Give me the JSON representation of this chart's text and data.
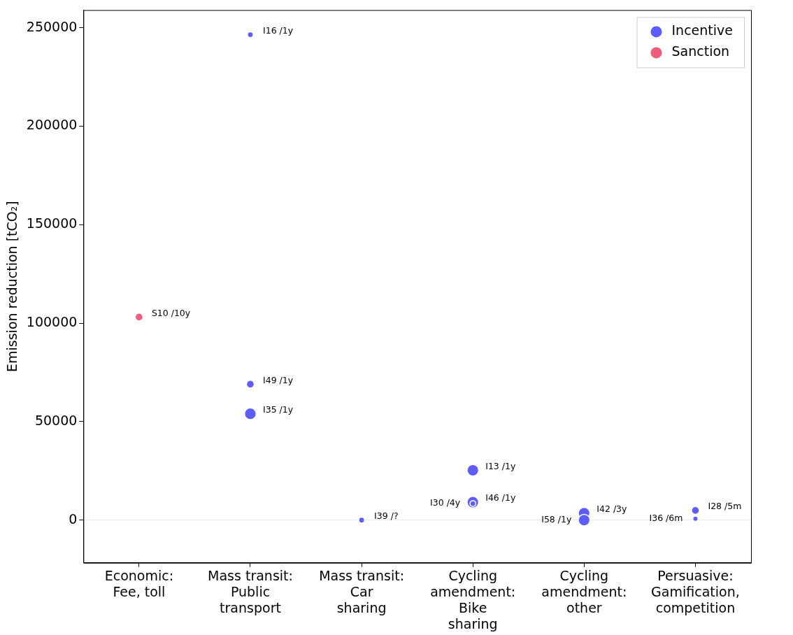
{
  "chart_data": {
    "type": "bubble",
    "ylabel": "Emission reduction [tCO₂]",
    "categories": [
      "Economic:\nFee, toll",
      "Mass transit:\nPublic\ntransport",
      "Mass transit:\nCar\nsharing",
      "Cycling\namendment:\nBike\nsharing",
      "Cycling\namendment:\nother",
      "Persuasive:\nGamification,\ncompetition"
    ],
    "ylim": [
      -21700,
      259000
    ],
    "yticks": [
      0,
      50000,
      100000,
      150000,
      200000,
      250000
    ],
    "series": [
      {
        "name": "Incentive",
        "color": "#5c5cff",
        "x": [
          "Mass transit:\nPublic\ntransport",
          "Mass transit:\nPublic\ntransport",
          "Mass transit:\nPublic\ntransport",
          "Mass transit:\nCar\nsharing",
          "Cycling\namendment:\nBike\nsharing",
          "Cycling\namendment:\nBike\nsharing",
          "Cycling\namendment:\nBike\nsharing",
          "Cycling\namendment:\nother",
          "Cycling\namendment:\nother",
          "Persuasive:\nGamification,\ncompetition",
          "Persuasive:\nGamification,\ncompetition"
        ],
        "values": [
          246500,
          69000,
          54000,
          0,
          25300,
          9100,
          8400,
          3500,
          0,
          4900,
          700
        ],
        "sizes": [
          0.25,
          0.45,
          1,
          0.25,
          1,
          1,
          0.25,
          1,
          1,
          0.45,
          0.2
        ]
      },
      {
        "name": "Sanction",
        "color": "#f25c7c",
        "x": [
          "Economic:\nFee, toll"
        ],
        "values": [
          103100
        ],
        "sizes": [
          0.45
        ]
      }
    ],
    "annotations": [
      {
        "text": "I16 /1y",
        "x": "Mass transit:\nPublic\ntransport",
        "y": 246500
      },
      {
        "text": "I49 /1y",
        "x": "Mass transit:\nPublic\ntransport",
        "y": 69000
      },
      {
        "text": "I35 /1y",
        "x": "Mass transit:\nPublic\ntransport",
        "y": 54000
      },
      {
        "text": "I39 /?",
        "x": "Mass transit:\nCar\nsharing",
        "y": 0
      },
      {
        "text": "I13 /1y",
        "x": "Cycling\namendment:\nBike\nsharing",
        "y": 25300
      },
      {
        "text": "I46 /1y",
        "x": "Cycling\namendment:\nBike\nsharing",
        "y": 9100
      },
      {
        "text": "I30 /4y",
        "x": "Cycling\namendment:\nBike\nsharing",
        "y": 8400
      },
      {
        "text": "I42 /3y",
        "x": "Cycling\namendment:\nother",
        "y": 3500
      },
      {
        "text": "I58 /1y",
        "x": "Cycling\namendment:\nother",
        "y": 0
      },
      {
        "text": "I28 /5m",
        "x": "Persuasive:\nGamification,\ncompetition",
        "y": 4900
      },
      {
        "text": "I36 /6m",
        "x": "Persuasive:\nGamification,\ncompetition",
        "y": 700
      },
      {
        "text": "S10 /10y",
        "x": "Economic:\nFee, toll",
        "y": 103100
      }
    ],
    "ref_lines": [
      {
        "axis": "y",
        "value": 0,
        "color": "#e6e6e6"
      }
    ],
    "legend": "top right",
    "grid": false
  }
}
